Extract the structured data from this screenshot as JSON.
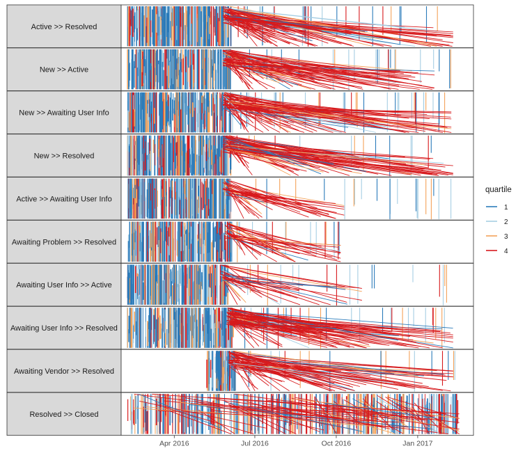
{
  "chart_data": {
    "type": "segment",
    "facet_rows": [
      "Active >> Resolved",
      "New >> Active",
      "New >> Awaiting User Info",
      "New >> Resolved",
      "Active >> Awaiting User Info",
      "Awaiting Problem >> Resolved",
      "Awaiting User Info >> Active",
      "Awaiting User Info >> Resolved",
      "Awaiting Vendor >> Resolved",
      "Resolved >> Closed"
    ],
    "x_range": [
      "2016-02-01",
      "2017-03-05"
    ],
    "x_ticks": [
      {
        "date": "2016-04-01",
        "label": "Apr 2016"
      },
      {
        "date": "2016-07-01",
        "label": "Jul 2016"
      },
      {
        "date": "2016-10-01",
        "label": "Oct 2016"
      },
      {
        "date": "2017-01-01",
        "label": "Jan 2017"
      }
    ],
    "legend": {
      "title": "quartile",
      "position": "right",
      "entries": [
        {
          "label": "1",
          "color": "#2b7bba"
        },
        {
          "label": "2",
          "color": "#a6cee3"
        },
        {
          "label": "3",
          "color": "#f4a259"
        },
        {
          "label": "4",
          "color": "#d7191c"
        }
      ]
    },
    "grid": false,
    "y_axis": "none",
    "segment_windows": [
      {
        "dense_start": "2016-02-08",
        "dense_end": "2016-06-04",
        "sparse_end": "2017-02-16",
        "slant_limit": "2017-02-10"
      },
      {
        "dense_start": "2016-02-08",
        "dense_end": "2016-06-04",
        "sparse_end": "2017-02-12",
        "slant_limit": "2017-01-20"
      },
      {
        "dense_start": "2016-02-08",
        "dense_end": "2016-06-04",
        "sparse_end": "2017-02-08",
        "slant_limit": "2017-02-08"
      },
      {
        "dense_start": "2016-02-08",
        "dense_end": "2016-06-04",
        "sparse_end": "2017-02-10",
        "slant_limit": "2017-02-10"
      },
      {
        "dense_start": "2016-02-08",
        "dense_end": "2016-06-04",
        "sparse_end": "2017-02-18",
        "slant_limit": "2016-10-10"
      },
      {
        "dense_start": "2016-02-09",
        "dense_end": "2016-06-06",
        "sparse_end": "2016-10-06",
        "slant_limit": "2016-10-06"
      },
      {
        "dense_start": "2016-02-08",
        "dense_end": "2016-06-01",
        "sparse_end": "2017-02-14",
        "slant_limit": "2016-10-30"
      },
      {
        "dense_start": "2016-02-08",
        "dense_end": "2016-06-08",
        "sparse_end": "2017-02-12",
        "slant_limit": "2017-02-10"
      },
      {
        "dense_start": "2016-05-06",
        "dense_end": "2016-06-10",
        "sparse_end": "2017-02-14",
        "slant_limit": "2017-02-10"
      },
      {
        "dense_start": "2016-02-08",
        "dense_end": "2017-02-17",
        "sparse_end": "2017-02-17",
        "slant_limit": "2017-02-17"
      }
    ]
  }
}
